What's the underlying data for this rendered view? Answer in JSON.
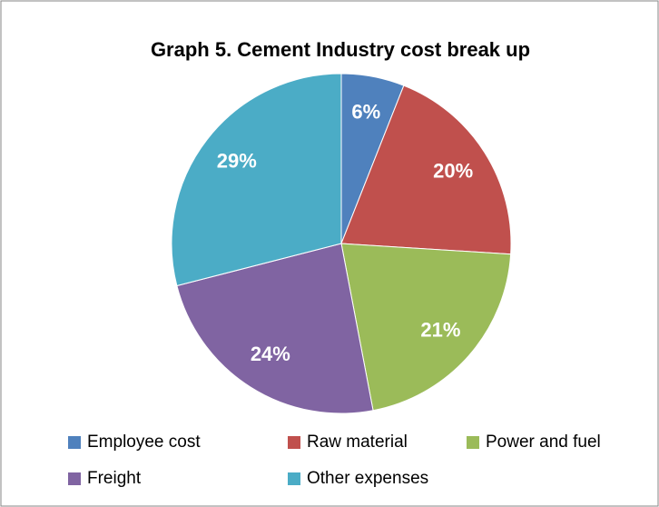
{
  "chart_data": {
    "type": "pie",
    "title": "Graph 5. Cement Industry cost break up",
    "categories": [
      "Employee cost",
      "Raw material",
      "Power and fuel",
      "Freight",
      "Other expenses"
    ],
    "values": [
      6,
      20,
      21,
      24,
      29
    ],
    "value_labels": [
      "6%",
      "20%",
      "21%",
      "24%",
      "29%"
    ],
    "colors": [
      "#4f81bd",
      "#c0504d",
      "#9bbb59",
      "#8064a2",
      "#4bacc6"
    ],
    "legend": "bottom"
  }
}
